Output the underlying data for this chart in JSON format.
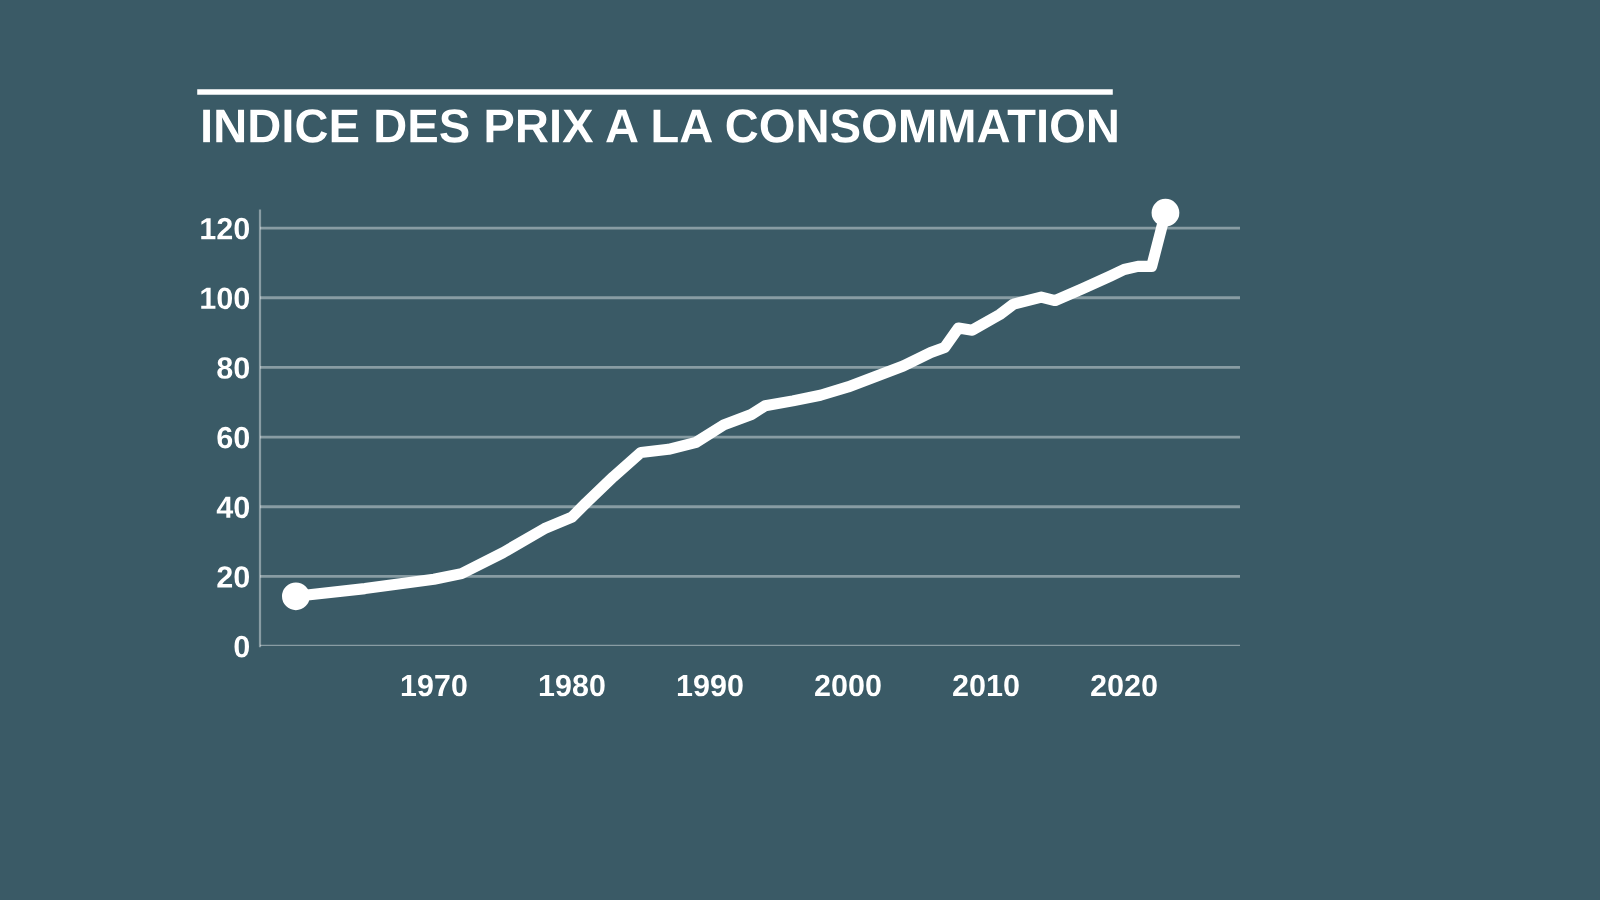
{
  "chart_data": {
    "type": "line",
    "title": "INDICE DES PRIX A LA CONSOMMATION",
    "x": [
      1960,
      1965,
      1970,
      1972,
      1975,
      1978,
      1980,
      1981,
      1983,
      1985,
      1987,
      1989,
      1991,
      1993,
      1994,
      1996,
      1998,
      2000,
      2002,
      2004,
      2006,
      2007,
      2008,
      2009,
      2011,
      2012,
      2014,
      2015,
      2017,
      2019,
      2020,
      2021,
      2022,
      2023
    ],
    "series": [
      {
        "color": "#ffffff",
        "values": [
          14.3,
          16.5,
          19.2,
          20.8,
          26.8,
          33.7,
          37,
          41,
          48.6,
          55.6,
          56.5,
          58.5,
          63.5,
          66.5,
          69,
          70.4,
          72,
          74.4,
          77.4,
          80.4,
          84.3,
          85.7,
          91.3,
          90.7,
          95.2,
          98.2,
          100.2,
          99.2,
          102.6,
          106.2,
          108.1,
          109,
          109,
          124.4
        ]
      }
    ],
    "xlim": [
      1957.4,
      2028.4
    ],
    "xticks": [
      1970,
      1980,
      1990,
      2000,
      2010,
      2020
    ],
    "ylim": [
      0,
      125
    ],
    "yticks": [
      0,
      20,
      40,
      60,
      80,
      100,
      120
    ],
    "grid": "y",
    "line_style": "solid"
  }
}
